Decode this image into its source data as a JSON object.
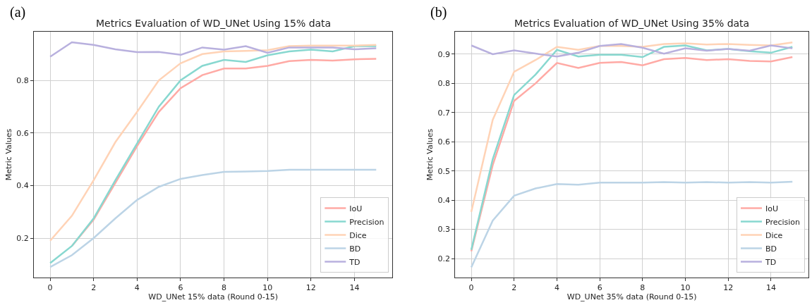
{
  "chart_data": [
    {
      "type": "line",
      "title": "Metrics Evaluation of WD_UNet Using 15% data",
      "xlabel": "WD_UNet 15% data (Round 0-15)",
      "ylabel": "Metric Values",
      "annotations": [
        "(a)"
      ],
      "x": [
        0,
        1,
        2,
        3,
        4,
        5,
        6,
        7,
        8,
        9,
        10,
        11,
        12,
        13,
        14,
        15
      ],
      "series": [
        {
          "name": "IoU",
          "color": "#ffaaa5",
          "values": [
            null,
            0.17,
            0.27,
            0.41,
            0.55,
            0.68,
            0.77,
            0.82,
            0.845,
            0.845,
            0.855,
            0.873,
            0.878,
            0.875,
            0.88,
            0.882
          ]
        },
        {
          "name": "Precision",
          "color": "#88d8d0",
          "values": [
            0.105,
            0.17,
            0.275,
            0.42,
            0.56,
            0.7,
            0.8,
            0.855,
            0.878,
            0.87,
            0.895,
            0.91,
            0.917,
            0.91,
            0.93,
            0.93
          ]
        },
        {
          "name": "Dice",
          "color": "#ffd3b6",
          "values": [
            0.19,
            0.285,
            0.42,
            0.565,
            0.68,
            0.8,
            0.865,
            0.9,
            0.91,
            0.912,
            0.915,
            0.93,
            0.932,
            0.932,
            0.932,
            0.935
          ]
        },
        {
          "name": "BD",
          "color": "#bcd4e6",
          "values": [
            0.09,
            0.135,
            0.2,
            0.275,
            0.345,
            0.395,
            0.425,
            0.44,
            0.452,
            0.453,
            0.455,
            0.46,
            0.46,
            0.46,
            0.46,
            0.46
          ]
        },
        {
          "name": "TD",
          "color": "#b8b0de",
          "values": [
            0.89,
            0.945,
            0.935,
            0.918,
            0.907,
            0.908,
            0.897,
            0.925,
            0.917,
            0.93,
            0.905,
            0.925,
            0.925,
            0.925,
            0.918,
            0.922
          ]
        }
      ],
      "xlim": [
        -0.75,
        15.75
      ],
      "xticks": [
        0,
        2,
        4,
        6,
        8,
        10,
        12,
        14
      ],
      "ylim": [
        0.05,
        0.985
      ],
      "yticks": [
        0.2,
        0.4,
        0.6,
        0.8
      ],
      "grid": true,
      "legend": "bottom right"
    },
    {
      "type": "line",
      "title": "Metrics Evaluation of WD_UNet Using 35% data",
      "xlabel": "WD_UNet 35% data (Round 0-15)",
      "ylabel": "Metric Values",
      "annotations": [
        "(b)"
      ],
      "x": [
        0,
        1,
        2,
        3,
        4,
        5,
        6,
        7,
        8,
        9,
        10,
        11,
        12,
        13,
        14,
        15
      ],
      "series": [
        {
          "name": "IoU",
          "color": "#ffaaa5",
          "values": [
            0.225,
            0.52,
            0.74,
            0.8,
            0.87,
            0.853,
            0.87,
            0.873,
            0.862,
            0.883,
            0.887,
            0.88,
            0.883,
            0.877,
            0.875,
            0.89
          ]
        },
        {
          "name": "Precision",
          "color": "#88d8d0",
          "values": [
            0.23,
            0.54,
            0.76,
            0.83,
            0.915,
            0.892,
            0.898,
            0.898,
            0.89,
            0.925,
            0.93,
            0.913,
            0.918,
            0.91,
            0.905,
            0.925
          ]
        },
        {
          "name": "Dice",
          "color": "#ffd3b6",
          "values": [
            0.36,
            0.675,
            0.84,
            0.88,
            0.925,
            0.915,
            0.928,
            0.928,
            0.925,
            0.935,
            0.937,
            0.933,
            0.935,
            0.932,
            0.93,
            0.94
          ]
        },
        {
          "name": "BD",
          "color": "#bcd4e6",
          "values": [
            0.17,
            0.33,
            0.415,
            0.44,
            0.455,
            0.453,
            0.46,
            0.46,
            0.46,
            0.462,
            0.46,
            0.462,
            0.46,
            0.462,
            0.46,
            0.463
          ]
        },
        {
          "name": "TD",
          "color": "#b8b0de",
          "values": [
            0.93,
            0.9,
            0.913,
            0.902,
            0.892,
            0.905,
            0.928,
            0.935,
            0.922,
            0.902,
            0.92,
            0.912,
            0.918,
            0.912,
            0.93,
            0.92
          ]
        }
      ],
      "xlim": [
        -0.75,
        15.75
      ],
      "xticks": [
        0,
        2,
        4,
        6,
        8,
        10,
        12,
        14
      ],
      "ylim": [
        0.135,
        0.977
      ],
      "yticks": [
        0.2,
        0.3,
        0.4,
        0.5,
        0.6,
        0.7,
        0.8,
        0.9
      ],
      "grid": true,
      "legend": "bottom right"
    }
  ]
}
